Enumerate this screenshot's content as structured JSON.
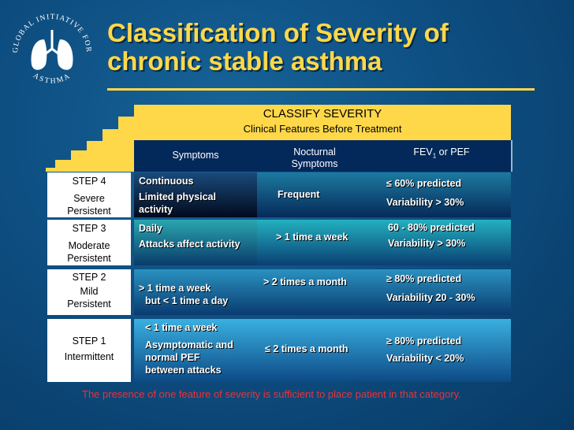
{
  "logo": {
    "top_text": "GLOBAL INITIATIVE FOR",
    "bottom_text": "ASTHMA"
  },
  "title": {
    "line1": "Classification of Severity of",
    "line2": "chronic stable asthma"
  },
  "table": {
    "header_title": "CLASSIFY SEVERITY",
    "header_subtitle": "Clinical Features Before Treatment",
    "columns": {
      "symptoms": "Symptoms",
      "nocturnal_1": "Nocturnal",
      "nocturnal_2": "Symptoms",
      "fev_prefix": "FEV",
      "fev_sub": "1",
      "fev_suffix": " or PEF"
    },
    "rows": [
      {
        "step": "STEP 4",
        "severity_1": "Severe",
        "severity_2": "Persistent",
        "symptoms": [
          "Continuous",
          "Limited physical",
          "activity"
        ],
        "nocturnal": "Frequent",
        "fev": [
          "≤ 60% predicted",
          "Variability > 30%"
        ]
      },
      {
        "step": "STEP 3",
        "severity_1": "Moderate",
        "severity_2": "Persistent",
        "symptoms": [
          "Daily",
          "Attacks affect activity"
        ],
        "nocturnal": "> 1 time a week",
        "fev": [
          "60 - 80% predicted",
          "Variability  > 30%"
        ]
      },
      {
        "step": "STEP 2",
        "severity_1": "Mild",
        "severity_2": "Persistent",
        "symptoms": [
          "> 1 time a week",
          "but < 1 time a day"
        ],
        "nocturnal": "> 2 times a month",
        "fev": [
          "≥ 80% predicted",
          "Variability 20 - 30%"
        ]
      },
      {
        "step": "STEP 1",
        "severity_1": "Intermittent",
        "symptoms": [
          "< 1 time a week",
          "Asymptomatic and",
          "normal PEF",
          "between attacks"
        ],
        "nocturnal": "≤ 2 times a month",
        "fev": [
          "≥ 80% predicted",
          "Variability < 20%"
        ]
      }
    ]
  },
  "note": "The presence of one feature of severity is sufficient to place  patient in that category.",
  "colors": {
    "background": "#0e4f82",
    "title": "#ffd84a",
    "stairs": "#ffd84a",
    "header_row": "#03285a",
    "note": "#e8333b"
  }
}
